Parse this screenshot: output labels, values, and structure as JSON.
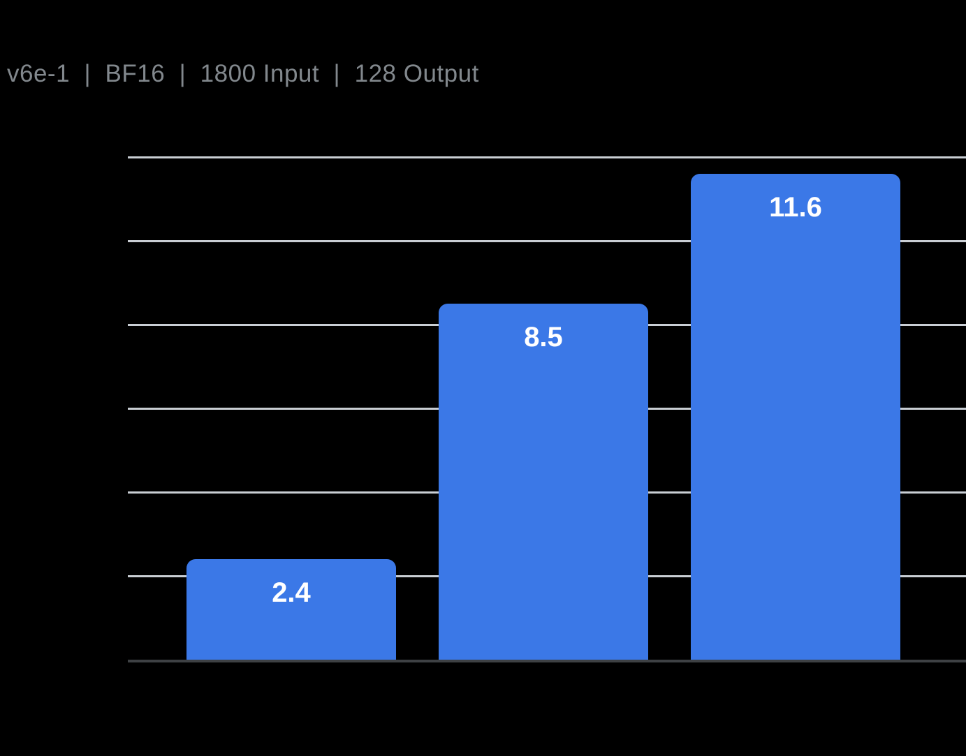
{
  "header": {
    "title": "v6e-1  |  BF16  |  1800 Input  |  128 Output"
  },
  "colors": {
    "background": "#000000",
    "bar": "#3B78E7",
    "grid": "#C9CED4",
    "axis": "#3E4144",
    "title": "#82888D",
    "value_label": "#FFFFFF"
  },
  "chart_data": {
    "type": "bar",
    "title": "v6e-1 | BF16 | 1800 Input | 128 Output",
    "categories": [
      "",
      "",
      ""
    ],
    "values": [
      2.4,
      8.5,
      11.6
    ],
    "data_labels": [
      "2.4",
      "8.5",
      "11.6"
    ],
    "xlabel": "",
    "ylabel": "",
    "ylim": [
      0,
      12
    ],
    "gridline_interval": 2,
    "grid": true,
    "legend": false,
    "x_tick_labels_visible": false,
    "y_tick_labels_visible": false
  }
}
